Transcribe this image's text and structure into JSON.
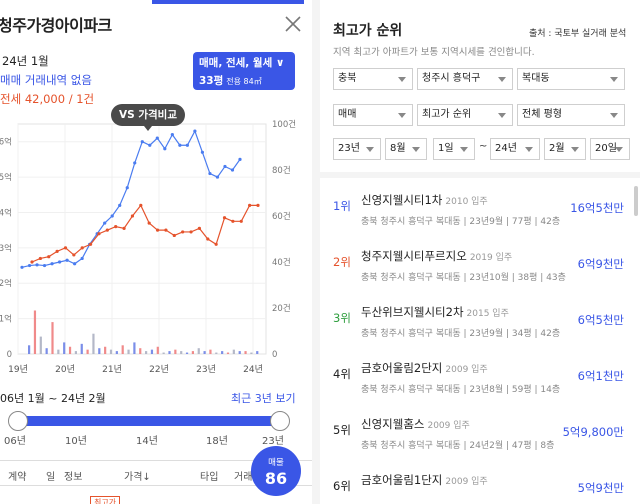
{
  "left": {
    "title": "청주가경아이파크",
    "month": "24년 1월",
    "no_trade": "매매 거래내역 없음",
    "jeonse": "전세 42,000 / 1건",
    "filter_type": "매매, 전세, 월세",
    "filter_size": "33평",
    "filter_area": "전용 84㎡",
    "vs_tooltip": "VS 가격비교",
    "range_text": "06년 1월 ~ 24년 2월",
    "recent_link": "최근 3년 보기",
    "slider_ticks": [
      "06년",
      "10년",
      "14년",
      "18년",
      "23년"
    ],
    "table_head": {
      "col1": "계약",
      "col2": "일",
      "col3": "정보",
      "col4": "가격↓",
      "col5": "타입",
      "col6": "거래"
    },
    "listing_label": "매물",
    "listing_count": "86",
    "top_badge": "최고가"
  },
  "chart_data": {
    "type": "line",
    "x_labels": [
      "19년",
      "20년",
      "21년",
      "22년",
      "23년",
      "24년"
    ],
    "left_axis_labels": [
      "0",
      "1억",
      "2억",
      "3억",
      "4억",
      "5억",
      "6억"
    ],
    "right_axis_labels": [
      "0",
      "20건",
      "40건",
      "60건",
      "80건",
      "100건"
    ],
    "series": [
      {
        "color": "#4a7cf0",
        "values": [
          2.45,
          2.5,
          2.52,
          2.5,
          2.55,
          2.6,
          2.65,
          2.55,
          2.7,
          3.1,
          3.4,
          3.7,
          3.9,
          4.2,
          4.7,
          5.4,
          6.0,
          5.9,
          6.1,
          5.8,
          6.2,
          5.9,
          5.9,
          6.3,
          5.7,
          5.1,
          5.0,
          5.3,
          5.2,
          5.5
        ]
      },
      {
        "color": "#e5532c",
        "values": [
          2.6,
          2.7,
          2.75,
          2.9,
          3.0,
          2.8,
          3.0,
          3.1,
          3.4,
          3.5,
          3.6,
          3.55,
          3.9,
          4.2,
          3.7,
          3.5,
          3.5,
          3.35,
          3.45,
          3.45,
          3.55,
          3.25,
          3.1,
          3.85,
          3.75,
          3.75,
          4.2,
          4.2
        ]
      }
    ],
    "volume_bars": [
      6,
      30,
      12,
      4,
      22,
      3,
      8,
      5,
      2,
      7,
      3,
      14,
      4,
      5,
      3,
      2,
      6,
      3,
      8,
      4,
      2,
      3,
      5,
      1,
      2,
      3,
      2,
      1,
      2,
      4,
      2,
      3,
      1,
      2,
      1,
      3,
      2,
      2,
      1,
      2
    ],
    "bar_colors": [
      "#7b8ee8",
      "#f08a8a",
      "#b4b8c8"
    ]
  },
  "right": {
    "title": "최고가 순위",
    "source": "출처 : 국토부 실거래 분석",
    "desc": "지역 최고가 아파트가 보통 지역시세를 견인합니다.",
    "region": {
      "sido": "충북",
      "sigungu": "청주시 흥덕구",
      "dong": "복대동"
    },
    "filters": {
      "trade": "매매",
      "sort": "최고가 순위",
      "size": "전체 평형"
    },
    "date_from": {
      "year": "23년",
      "month": "8월",
      "day": "1일"
    },
    "date_to": {
      "year": "24년",
      "month": "2월",
      "day": "20일"
    },
    "tilde": "~",
    "ranks": [
      {
        "rank": "1위",
        "rank_color": "#3a56e6",
        "name": "신영지웰시티1차",
        "year": "2010 입주",
        "meta": "충북 청주시 흥덕구 복대동 | 23년9월 | 77평 | 42층",
        "price": "16억5천만"
      },
      {
        "rank": "2위",
        "rank_color": "#e5532c",
        "name": "청주지웰시티푸르지오",
        "year": "2019 입주",
        "meta": "충북 청주시 흥덕구 복대동 | 23년10월 | 38평 | 43층",
        "price": "6억9천만"
      },
      {
        "rank": "3위",
        "rank_color": "#2e9e3e",
        "name": "두산위브지웰시티2차",
        "year": "2015 입주",
        "meta": "충북 청주시 흥덕구 복대동 | 23년9월 | 34평 | 42층",
        "price": "6억5천만"
      },
      {
        "rank": "4위",
        "rank_color": "#222222",
        "name": "금호어울림2단지",
        "year": "2009 입주",
        "meta": "충북 청주시 흥덕구 복대동 | 23년8월 | 59평 | 14층",
        "price": "6억1천만"
      },
      {
        "rank": "5위",
        "rank_color": "#222222",
        "name": "신영지웰홈스",
        "year": "2009 입주",
        "meta": "충북 청주시 흥덕구 복대동 | 24년2월 | 47평 | 8층",
        "price": "5억9,800만"
      },
      {
        "rank": "6위",
        "rank_color": "#222222",
        "name": "금호어울림1단지",
        "year": "2009 입주",
        "meta": "",
        "price": "5억9천만"
      }
    ]
  }
}
